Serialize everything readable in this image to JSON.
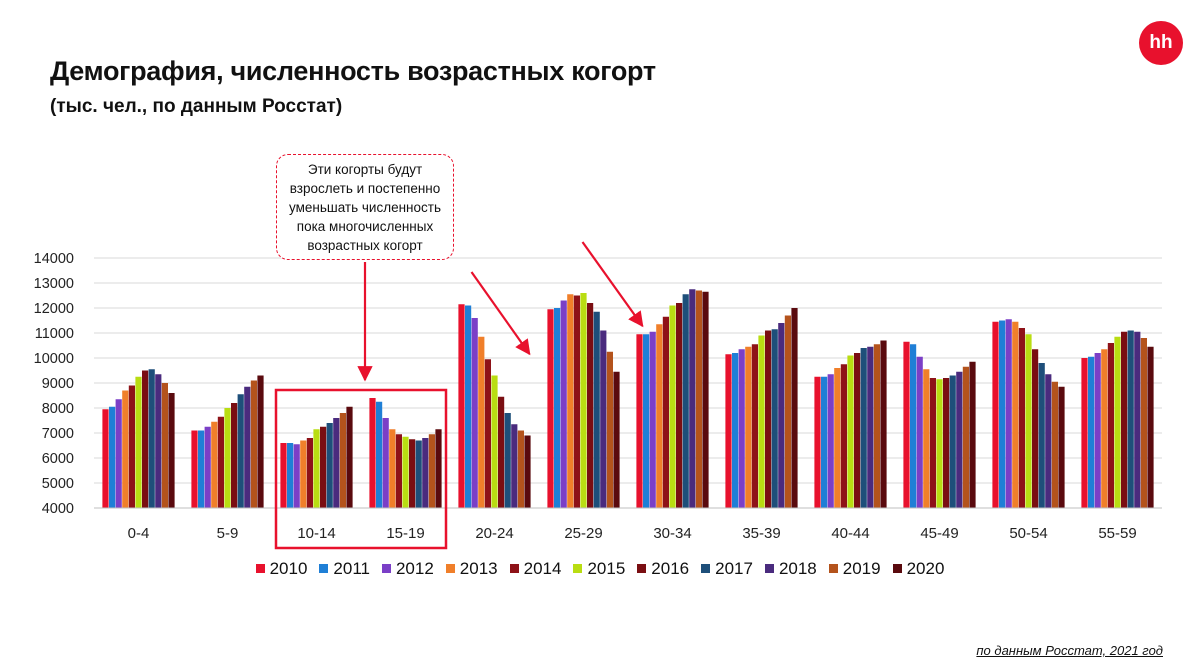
{
  "header": {
    "title": "Демография, численность возрастных когорт",
    "subtitle": "(тыс. чел., по данным Росстат)",
    "logo_text": "hh",
    "footnote": "по данным Росстат, 2021 год"
  },
  "callout": {
    "lines": [
      "Эти когорты будут",
      "взрослеть и постепенно",
      "уменьшать численность",
      "пока многочисленных",
      "возрастных когорт"
    ]
  },
  "chart_data": {
    "type": "bar",
    "title": "Демография, численность возрастных когорт",
    "subtitle": "(тыс. чел., по данным Росстат)",
    "categories": [
      "0-4",
      "5-9",
      "10-14",
      "15-19",
      "20-24",
      "25-29",
      "30-34",
      "35-39",
      "40-44",
      "45-49",
      "50-54",
      "55-59"
    ],
    "ylim": [
      4000,
      14000
    ],
    "yticks": [
      4000,
      5000,
      6000,
      7000,
      8000,
      9000,
      10000,
      11000,
      12000,
      13000,
      14000
    ],
    "grid": true,
    "legend_position": "bottom",
    "highlighted_categories": [
      "10-14",
      "15-19"
    ],
    "series": [
      {
        "name": "2010",
        "color": "#e8112d",
        "values": [
          7950,
          7100,
          6600,
          8400,
          12150,
          11950,
          10950,
          10150,
          9250,
          10650,
          11450,
          10000
        ]
      },
      {
        "name": "2011",
        "color": "#1f7fd6",
        "values": [
          8050,
          7100,
          6600,
          8250,
          12100,
          12000,
          10950,
          10200,
          9250,
          10550,
          11500,
          10050
        ]
      },
      {
        "name": "2012",
        "color": "#7b3fc7",
        "values": [
          8350,
          7250,
          6550,
          7600,
          11600,
          12300,
          11050,
          10350,
          9350,
          10050,
          11550,
          10200
        ]
      },
      {
        "name": "2013",
        "color": "#f07f2a",
        "values": [
          8700,
          7450,
          6700,
          7150,
          10850,
          12550,
          11350,
          10450,
          9600,
          9550,
          11450,
          10350
        ]
      },
      {
        "name": "2014",
        "color": "#8e1218",
        "values": [
          8900,
          7650,
          6800,
          6950,
          9950,
          12500,
          11650,
          10550,
          9750,
          9200,
          11200,
          10600
        ]
      },
      {
        "name": "2015",
        "color": "#b9dd12",
        "values": [
          9250,
          8000,
          7150,
          6850,
          9300,
          12600,
          12100,
          10900,
          10100,
          9150,
          10950,
          10850
        ]
      },
      {
        "name": "2016",
        "color": "#7a0e12",
        "values": [
          9500,
          8200,
          7250,
          6750,
          8450,
          12200,
          12200,
          11100,
          10200,
          9200,
          10350,
          11050
        ]
      },
      {
        "name": "2017",
        "color": "#1e4f7a",
        "values": [
          9550,
          8550,
          7400,
          6700,
          7800,
          11850,
          12550,
          11150,
          10400,
          9300,
          9800,
          11100
        ]
      },
      {
        "name": "2018",
        "color": "#4a2b7e",
        "values": [
          9350,
          8850,
          7600,
          6800,
          7350,
          11100,
          12750,
          11400,
          10450,
          9450,
          9350,
          11050
        ]
      },
      {
        "name": "2019",
        "color": "#b4531c",
        "values": [
          9000,
          9100,
          7800,
          6950,
          7100,
          10250,
          12700,
          11700,
          10550,
          9650,
          9050,
          10800
        ]
      },
      {
        "name": "2020",
        "color": "#5a0a0e",
        "values": [
          8600,
          9300,
          8050,
          7150,
          6900,
          9450,
          12650,
          12000,
          10700,
          9850,
          8850,
          10450
        ]
      }
    ]
  }
}
